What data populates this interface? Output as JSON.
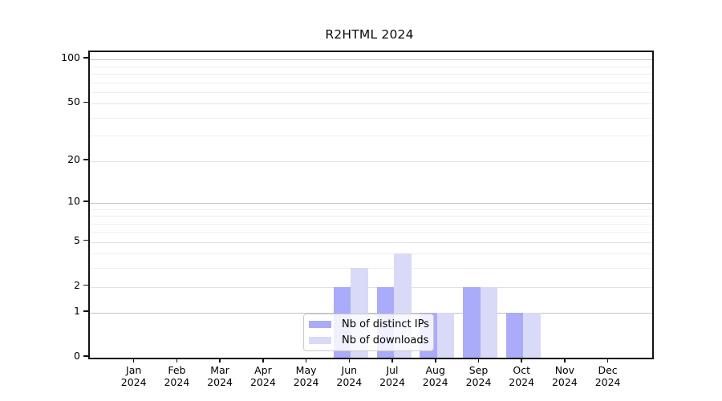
{
  "chart_data": {
    "type": "bar",
    "title": "R2HTML 2024",
    "categories": [
      "Jan",
      "Feb",
      "Mar",
      "Apr",
      "May",
      "Jun",
      "Jul",
      "Aug",
      "Sep",
      "Oct",
      "Nov",
      "Dec"
    ],
    "year": "2024",
    "series": [
      {
        "name": "Nb of distinct IPs",
        "color": "#aaabf9",
        "values": [
          0,
          0,
          0,
          0,
          0,
          2,
          2,
          1,
          2,
          1,
          0,
          0
        ]
      },
      {
        "name": "Nb of downloads",
        "color": "#d9daf8",
        "values": [
          0,
          0,
          0,
          0,
          0,
          3,
          4,
          1,
          2,
          1,
          0,
          0
        ]
      }
    ],
    "y_axis": {
      "scale": "log10(1+x)",
      "ylim": [
        0,
        100
      ],
      "ticks": [
        0,
        1,
        2,
        5,
        10,
        20,
        50,
        100
      ],
      "decade_gridlines": [
        1,
        10,
        100
      ],
      "mid_gridlines": [
        2,
        5,
        20,
        50
      ],
      "minor_gridlines": [
        3,
        4,
        6,
        7,
        8,
        9,
        30,
        40,
        60,
        70,
        80,
        90
      ]
    },
    "grid": true,
    "legend_position": "bottom-center-inside",
    "colors": {
      "decade_grid": "#c4c4c4",
      "mid_grid": "#e2e2e2",
      "minor_grid": "#eeeeee",
      "spine": "#111111"
    }
  }
}
